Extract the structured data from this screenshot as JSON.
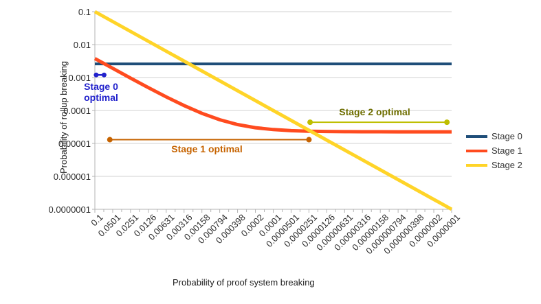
{
  "chart_data": {
    "type": "line",
    "title": "",
    "xlabel": "Probability of proof system breaking",
    "ylabel": "Probability of rollup breaking",
    "x_scale": "log10-reversed",
    "y_scale": "log10",
    "x_range": [
      0.1,
      1e-07
    ],
    "y_range": [
      0.1,
      1e-07
    ],
    "grid": "horizontal-only",
    "legend_position": "right",
    "grid_color": "#d0d0d0",
    "axis_color": "#b3b3b3",
    "tick_label_color": "#2b2b2b",
    "axis_title_color": "#222222",
    "legend_text_color": "#333333",
    "x_tick_labels": [
      "0.1",
      "0.0501",
      "0.0251",
      "0.0126",
      "0.00631",
      "0.00316",
      "0.00158",
      "0.000794",
      "0.000398",
      "0.0002",
      "0.0001",
      "0.0000501",
      "0.0000251",
      "0.0000126",
      "0.00000631",
      "0.00000316",
      "0.00000158",
      "0.000000794",
      "0.000000398",
      "0.0000002",
      "0.0000001"
    ],
    "y_tick_labels": [
      "0.1",
      "0.01",
      "0.001",
      "0.0001",
      "0.00001",
      "0.000001",
      "0.0000001"
    ],
    "series": [
      {
        "name": "Stage 0",
        "color": "#1F4E79",
        "points": [
          [
            0.1,
            0.0026
          ],
          [
            1e-07,
            0.0026
          ]
        ]
      },
      {
        "name": "Stage 1",
        "color": "#FF4B1F",
        "points": [
          [
            0.1,
            0.00377
          ],
          [
            0.0501,
            0.0019
          ],
          [
            0.0251,
            0.000964
          ],
          [
            0.0126,
            0.000495
          ],
          [
            0.00631,
            0.000259
          ],
          [
            0.00316,
            0.000141
          ],
          [
            0.00158,
            8.18e-05
          ],
          [
            0.000794,
            5.23e-05
          ],
          [
            0.000398,
            3.74e-05
          ],
          [
            0.0002,
            3e-05
          ],
          [
            0.0001,
            2.63e-05
          ],
          [
            5.01e-05,
            2.44e-05
          ],
          [
            2.51e-05,
            2.34e-05
          ],
          [
            1.26e-05,
            2.3e-05
          ],
          [
            6.31e-06,
            2.27e-05
          ],
          [
            3.16e-06,
            2.26e-05
          ],
          [
            1.58e-06,
            2.26e-05
          ],
          [
            7.94e-07,
            2.25e-05
          ],
          [
            3.98e-07,
            2.25e-05
          ],
          [
            2e-07,
            2.25e-05
          ],
          [
            1e-07,
            2.25e-05
          ]
        ]
      },
      {
        "name": "Stage 2",
        "color": "#FFD428",
        "points": [
          [
            0.1,
            0.1
          ],
          [
            1e-07,
            1e-07
          ]
        ]
      }
    ],
    "annotations": [
      {
        "name": "stage0-optimal",
        "label": "Stage 0 optimal",
        "label_lines": [
          "Stage 0",
          "optimal"
        ],
        "text_color": "#2222CC",
        "marker_color": "#2222CC",
        "x_start": 0.095,
        "x_end": 0.07,
        "y": 0.0012
      },
      {
        "name": "stage1-optimal",
        "label": "Stage 1 optimal",
        "text_color": "#C66300",
        "marker_color": "#C66300",
        "x_start": 0.056,
        "x_end": 2.51e-05,
        "y": 1.3e-05
      },
      {
        "name": "stage2-optimal",
        "label": "Stage 2 optimal",
        "text_color": "#6E6E00",
        "marker_color": "#BEBE00",
        "x_start": 2.4e-05,
        "x_end": 1.2e-07,
        "y": 4.4e-05
      }
    ]
  }
}
